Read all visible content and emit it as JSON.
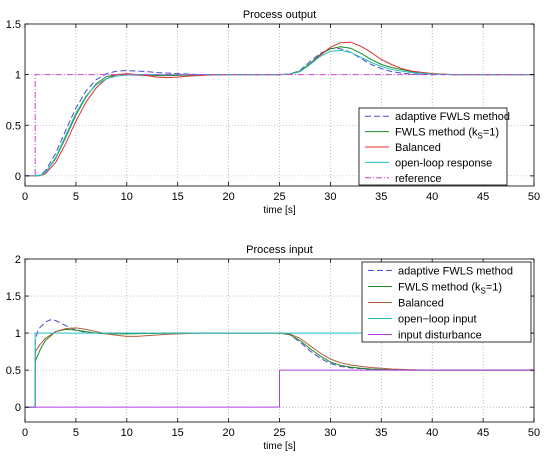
{
  "chart_data": [
    {
      "type": "line",
      "title": "Process output",
      "xlabel": "time [s]",
      "ylabel": "",
      "xlim": [
        0,
        50
      ],
      "ylim": [
        -0.1,
        1.5
      ],
      "xticks": [
        0,
        5,
        10,
        15,
        20,
        25,
        30,
        35,
        40,
        45,
        50
      ],
      "yticks": [
        0,
        0.5,
        1,
        1.5
      ],
      "grid": true,
      "legend_position": "lower-right",
      "series": [
        {
          "name": "adaptive FWLS method",
          "legend_main": "adaptive FWLS method",
          "legend_sub": "",
          "legend_tail": "",
          "color": "#4a4ad6",
          "dash": "6,3",
          "x": [
            0,
            1,
            1.5,
            2,
            3,
            4,
            5,
            6,
            7,
            8,
            9,
            10,
            11,
            12,
            13,
            14,
            15,
            16,
            18,
            20,
            22,
            25,
            26,
            27,
            28,
            29,
            30,
            30.5,
            31,
            32,
            33,
            34,
            35,
            36,
            37,
            38,
            40,
            42,
            45,
            50
          ],
          "y": [
            0,
            0,
            0.01,
            0.05,
            0.22,
            0.45,
            0.67,
            0.84,
            0.95,
            1.01,
            1.035,
            1.04,
            1.035,
            1.03,
            1.02,
            1.015,
            1.01,
            1.005,
            1.0,
            1.0,
            1.0,
            1.0,
            1.005,
            1.04,
            1.13,
            1.21,
            1.255,
            1.26,
            1.255,
            1.22,
            1.16,
            1.1,
            1.06,
            1.03,
            1.015,
            1.005,
            1.0,
            1.0,
            1.0,
            1.0
          ]
        },
        {
          "name": "FWLS method (kS=1)",
          "legend_main": "FWLS method (k",
          "legend_sub": "S",
          "legend_tail": "=1)",
          "color": "#208a20",
          "dash": "",
          "x": [
            0,
            1,
            1.5,
            2,
            3,
            4,
            5,
            6,
            7,
            8,
            9,
            10,
            11,
            12,
            14,
            16,
            18,
            20,
            25,
            26,
            27,
            28,
            29,
            30,
            31,
            32,
            33,
            34,
            35,
            36,
            38,
            40,
            42,
            45,
            50
          ],
          "y": [
            0,
            0,
            0.005,
            0.03,
            0.17,
            0.38,
            0.6,
            0.78,
            0.91,
            0.98,
            1.0,
            1.0,
            0.995,
            0.99,
            0.99,
            0.995,
            1.0,
            1.0,
            1.0,
            1.005,
            1.035,
            1.11,
            1.2,
            1.255,
            1.275,
            1.26,
            1.21,
            1.15,
            1.1,
            1.07,
            1.03,
            1.01,
            1.0,
            1.0,
            1.0
          ]
        },
        {
          "name": "Balanced",
          "legend_main": "Balanced",
          "legend_sub": "",
          "legend_tail": "",
          "color": "#e03030",
          "dash": "",
          "x": [
            0,
            1,
            1.5,
            2,
            3,
            4,
            5,
            6,
            7,
            8,
            9,
            10,
            11,
            12,
            13,
            14,
            15,
            16,
            17,
            18,
            20,
            25,
            26,
            27,
            28,
            29,
            30,
            31,
            32,
            33,
            34,
            35,
            36,
            37,
            38,
            40,
            42,
            45,
            50
          ],
          "y": [
            0,
            0,
            0.003,
            0.02,
            0.13,
            0.32,
            0.54,
            0.73,
            0.87,
            0.96,
            1.0,
            1.01,
            1.0,
            0.99,
            0.975,
            0.97,
            0.975,
            0.985,
            0.99,
            0.995,
            1.0,
            1.0,
            1.005,
            1.03,
            1.1,
            1.19,
            1.27,
            1.315,
            1.32,
            1.28,
            1.22,
            1.15,
            1.1,
            1.06,
            1.035,
            1.01,
            1.0,
            1.0,
            1.0
          ]
        },
        {
          "name": "open-loop response",
          "legend_main": "open-loop response",
          "legend_sub": "",
          "legend_tail": "",
          "color": "#20c0c0",
          "dash": "",
          "x": [
            0,
            1,
            1.5,
            2,
            3,
            4,
            5,
            6,
            7,
            8,
            9,
            10,
            11,
            12,
            14,
            16,
            18,
            20,
            25,
            26,
            27,
            28,
            29,
            30,
            31,
            32,
            33,
            34,
            35,
            36,
            38,
            40,
            42,
            45,
            50
          ],
          "y": [
            0,
            0,
            0.005,
            0.03,
            0.18,
            0.4,
            0.62,
            0.79,
            0.9,
            0.96,
            0.985,
            0.995,
            1.0,
            1.0,
            1.0,
            1.0,
            1.0,
            1.0,
            1.0,
            1.005,
            1.03,
            1.1,
            1.18,
            1.23,
            1.24,
            1.22,
            1.17,
            1.12,
            1.08,
            1.05,
            1.02,
            1.005,
            1.0,
            1.0,
            1.0
          ]
        },
        {
          "name": "reference",
          "legend_main": "reference",
          "legend_sub": "",
          "legend_tail": "",
          "color": "#d040d0",
          "dash": "6,2,1,2",
          "x": [
            0,
            1,
            1,
            50
          ],
          "y": [
            0,
            0,
            1,
            1
          ]
        }
      ]
    },
    {
      "type": "line",
      "title": "Process input",
      "xlabel": "time [s]",
      "ylabel": "",
      "xlim": [
        0,
        50
      ],
      "ylim": [
        -0.2,
        2
      ],
      "xticks": [
        0,
        5,
        10,
        15,
        20,
        25,
        30,
        35,
        40,
        45,
        50
      ],
      "yticks": [
        0,
        0.5,
        1,
        1.5,
        2
      ],
      "grid": true,
      "legend_position": "top-right",
      "series": [
        {
          "name": "adaptive FWLS method",
          "legend_main": "adaptive FWLS method",
          "legend_sub": "",
          "legend_tail": "",
          "color": "#4a4ad6",
          "dash": "6,3",
          "x": [
            0,
            1,
            1.01,
            1.3,
            2,
            2.5,
            3,
            4,
            5,
            6,
            7,
            8,
            9,
            10,
            12,
            15,
            20,
            25,
            26,
            27,
            28,
            29,
            30,
            31,
            32,
            33,
            34,
            35,
            36,
            38,
            40,
            45,
            50
          ],
          "y": [
            0,
            0,
            0.9,
            1.05,
            1.15,
            1.18,
            1.17,
            1.1,
            1.04,
            1.01,
            1.0,
            1.0,
            1.0,
            1.0,
            1.0,
            1.0,
            1.0,
            1.0,
            0.98,
            0.88,
            0.76,
            0.66,
            0.59,
            0.55,
            0.53,
            0.52,
            0.51,
            0.505,
            0.5,
            0.5,
            0.5,
            0.5,
            0.5
          ]
        },
        {
          "name": "FWLS method (kS=1)",
          "legend_main": "FWLS method (k",
          "legend_sub": "S",
          "legend_tail": "=1)",
          "color": "#208a20",
          "dash": "",
          "x": [
            0,
            1,
            1.01,
            1.5,
            2,
            3,
            4,
            5,
            6,
            7,
            8,
            9,
            10,
            12,
            15,
            20,
            25,
            26,
            27,
            28,
            29,
            30,
            31,
            32,
            33,
            34,
            35,
            36,
            38,
            40,
            45,
            50
          ],
          "y": [
            0,
            0,
            0.62,
            0.78,
            0.9,
            1.02,
            1.05,
            1.04,
            1.02,
            1.0,
            0.99,
            0.99,
            0.99,
            0.995,
            1.0,
            1.0,
            1.0,
            0.98,
            0.9,
            0.79,
            0.69,
            0.61,
            0.565,
            0.54,
            0.525,
            0.515,
            0.51,
            0.505,
            0.5,
            0.5,
            0.5,
            0.5
          ]
        },
        {
          "name": "Balanced",
          "legend_main": "Balanced",
          "legend_sub": "",
          "legend_tail": "",
          "color": "#b06040",
          "dash": "",
          "x": [
            0,
            1,
            1.01,
            1.5,
            2,
            3,
            4,
            5,
            6,
            7,
            8,
            9,
            10,
            11,
            12,
            13,
            14,
            15,
            17,
            20,
            25,
            26,
            27,
            28,
            29,
            30,
            31,
            32,
            33,
            34,
            35,
            36,
            37,
            38,
            40,
            45,
            50
          ],
          "y": [
            0,
            0,
            0.75,
            0.85,
            0.93,
            1.02,
            1.06,
            1.07,
            1.05,
            1.02,
            0.99,
            0.97,
            0.955,
            0.955,
            0.965,
            0.975,
            0.985,
            0.99,
            1.0,
            1.0,
            1.0,
            0.99,
            0.93,
            0.83,
            0.73,
            0.65,
            0.6,
            0.57,
            0.55,
            0.535,
            0.525,
            0.515,
            0.51,
            0.505,
            0.5,
            0.5,
            0.5
          ]
        },
        {
          "name": "open-loop input",
          "legend_main": "open−loop input",
          "legend_sub": "",
          "legend_tail": "",
          "color": "#20c0c0",
          "dash": "",
          "x": [
            0,
            1,
            1,
            50
          ],
          "y": [
            0,
            0,
            1,
            1
          ]
        },
        {
          "name": "input disturbance",
          "legend_main": "input disturbance",
          "legend_sub": "",
          "legend_tail": "",
          "color": "#b040e0",
          "dash": "",
          "x": [
            0,
            25,
            25,
            50
          ],
          "y": [
            0,
            0,
            0.5,
            0.5
          ]
        }
      ]
    }
  ]
}
